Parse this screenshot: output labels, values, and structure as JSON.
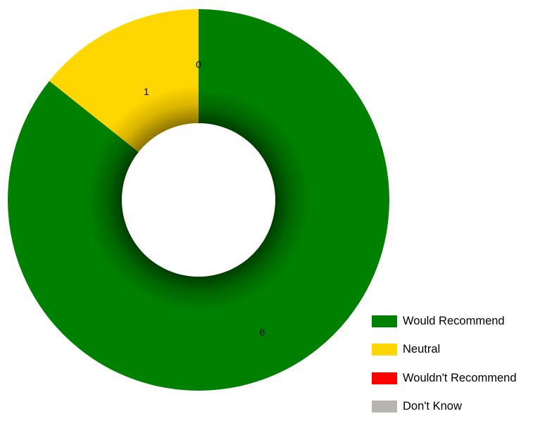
{
  "chart_data": {
    "type": "pie",
    "variant": "donut",
    "title": "",
    "categories": [
      "Would Recommend",
      "Neutral",
      "Wouldn't Recommend",
      "Don't Know"
    ],
    "values": [
      6,
      1,
      0,
      0
    ],
    "data_labels": [
      "6",
      "1",
      "0",
      "0"
    ],
    "colors": [
      "#008000",
      "#ffd700",
      "#ff0000",
      "#b8b4b0"
    ],
    "legend_position": "bottom-right",
    "start": "12 o'clock",
    "direction": "clockwise"
  }
}
